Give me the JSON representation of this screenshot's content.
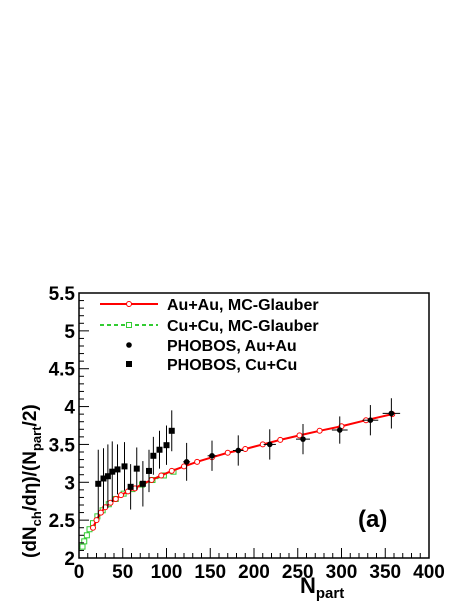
{
  "chart_data": {
    "type": "scatter",
    "title": "",
    "panel_label": "(a)",
    "xlabel": {
      "base": "N",
      "sub": "part"
    },
    "ylabel": {
      "p1": "(dN",
      "s1": "ch",
      "p2": "/dη)/(N",
      "s2": "part",
      "p3": "/2)"
    },
    "xlim": [
      0,
      400
    ],
    "ylim": [
      2,
      5.5
    ],
    "x_ticks": [
      "0",
      "50",
      "100",
      "150",
      "200",
      "250",
      "300",
      "350",
      "400"
    ],
    "y_ticks": [
      "2",
      "2.5",
      "3",
      "3.5",
      "4",
      "4.5",
      "5",
      "5.5"
    ],
    "grid": false,
    "legend_position": "top-left",
    "colors": {
      "auau_glauber": "#ff0000",
      "cucu_glauber": "#33cc33",
      "data": "#000000"
    },
    "series": [
      {
        "name": "Au+Au, MC-Glauber",
        "kind": "line-open-circle",
        "x": [
          16,
          20,
          25,
          30,
          36,
          42,
          48,
          56,
          64,
          73,
          83,
          94,
          106,
          120,
          135,
          152,
          170,
          190,
          210,
          230,
          252,
          275,
          300,
          328,
          358
        ],
        "y": [
          2.4,
          2.5,
          2.6,
          2.67,
          2.73,
          2.78,
          2.83,
          2.88,
          2.92,
          2.98,
          3.03,
          3.09,
          3.15,
          3.21,
          3.27,
          3.33,
          3.39,
          3.44,
          3.5,
          3.56,
          3.62,
          3.68,
          3.74,
          3.82,
          3.9
        ]
      },
      {
        "name": "Cu+Cu, MC-Glauber",
        "kind": "dashed-open-square",
        "x": [
          4,
          6,
          9,
          12,
          16,
          21,
          27,
          34,
          42,
          51,
          61,
          72,
          84,
          97,
          108
        ],
        "y": [
          2.15,
          2.22,
          2.3,
          2.38,
          2.46,
          2.55,
          2.63,
          2.71,
          2.78,
          2.85,
          2.91,
          2.97,
          3.03,
          3.09,
          3.14
        ]
      },
      {
        "name": "PHOBOS, Au+Au",
        "kind": "points-errors",
        "x": [
          123,
          152,
          182,
          218,
          256,
          298,
          333,
          357
        ],
        "y": [
          3.27,
          3.35,
          3.42,
          3.5,
          3.57,
          3.69,
          3.82,
          3.91
        ],
        "yerr": [
          0.25,
          0.2,
          0.2,
          0.2,
          0.2,
          0.18,
          0.2,
          0.2
        ],
        "xerr": [
          4,
          5,
          6,
          7,
          8,
          9,
          9,
          10
        ]
      },
      {
        "name": "PHOBOS, Cu+Cu",
        "kind": "points-errors",
        "x": [
          22,
          28,
          33,
          38,
          44,
          52,
          59,
          66,
          73,
          80,
          85,
          92,
          100,
          106
        ],
        "y": [
          2.98,
          3.05,
          3.08,
          3.14,
          3.17,
          3.21,
          2.94,
          3.18,
          2.98,
          3.15,
          3.35,
          3.43,
          3.49,
          3.68
        ],
        "yerr": [
          0.45,
          0.4,
          0.42,
          0.4,
          0.33,
          0.32,
          0.3,
          0.28,
          0.3,
          0.28,
          0.25,
          0.25,
          0.26,
          0.27
        ],
        "xerr": [
          0,
          0,
          0,
          0,
          0,
          0,
          0,
          0,
          0,
          3,
          3,
          3,
          3,
          3
        ]
      }
    ]
  }
}
